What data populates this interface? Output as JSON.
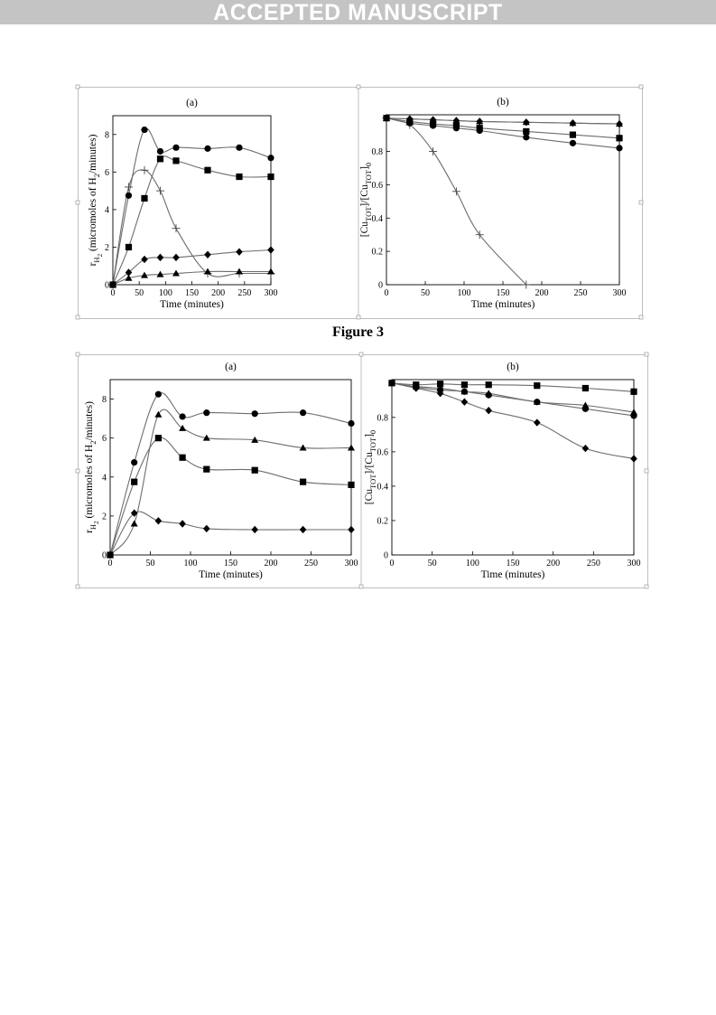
{
  "banner": {
    "text": "ACCEPTED MANUSCRIPT"
  },
  "figure_caption": "Figure 3",
  "chart_data": [
    {
      "type": "scatter",
      "panel_label": "(a)",
      "xlabel": "Time (minutes)",
      "ylabel": "r_H2 (micromoles of H2/minutes)",
      "xlim": [
        0,
        300
      ],
      "ylim": [
        0,
        9
      ],
      "x_ticks": [
        "0",
        "50",
        "100",
        "150",
        "200",
        "250",
        "300"
      ],
      "y_ticks": [
        "0",
        "2",
        "4",
        "6",
        "8"
      ],
      "grid": false,
      "series": [
        {
          "marker": "circle",
          "x": [
            0,
            30,
            60,
            90,
            120,
            180,
            240,
            300
          ],
          "y": [
            0,
            4.75,
            8.25,
            7.1,
            7.3,
            7.25,
            7.3,
            6.75
          ]
        },
        {
          "marker": "plus",
          "x": [
            0,
            30,
            60,
            90,
            120,
            180,
            240,
            300
          ],
          "y": [
            0,
            5.2,
            6.1,
            5.0,
            3.0,
            0.6,
            0.6,
            0.6
          ]
        },
        {
          "marker": "square",
          "x": [
            0,
            30,
            60,
            90,
            120,
            180,
            240,
            300
          ],
          "y": [
            0,
            2.0,
            4.6,
            6.7,
            6.6,
            6.1,
            5.75,
            5.75
          ]
        },
        {
          "marker": "diamond",
          "x": [
            0,
            30,
            60,
            90,
            120,
            180,
            240,
            300
          ],
          "y": [
            0,
            0.65,
            1.35,
            1.45,
            1.45,
            1.6,
            1.75,
            1.85
          ]
        },
        {
          "marker": "triangle",
          "x": [
            0,
            30,
            60,
            90,
            120,
            180,
            240,
            300
          ],
          "y": [
            0,
            0.35,
            0.5,
            0.55,
            0.6,
            0.7,
            0.7,
            0.7
          ]
        }
      ]
    },
    {
      "type": "scatter",
      "panel_label": "(b)",
      "xlabel": "Time (minutes)",
      "ylabel": "[Cu_TOT]/[Cu_TOT]_0",
      "xlim": [
        0,
        300
      ],
      "ylim": [
        0,
        1.02
      ],
      "x_ticks": [
        "0",
        "50",
        "100",
        "150",
        "200",
        "250",
        "300"
      ],
      "y_ticks": [
        "0",
        "0.2",
        "0.4",
        "0.6",
        "0.8"
      ],
      "grid": false,
      "series": [
        {
          "marker": "plus",
          "x": [
            0,
            30,
            60,
            90,
            120,
            180
          ],
          "y": [
            1.0,
            0.96,
            0.8,
            0.56,
            0.3,
            0.0
          ]
        },
        {
          "marker": "circle",
          "x": [
            0,
            30,
            60,
            90,
            120,
            180,
            240,
            300
          ],
          "y": [
            1.0,
            0.97,
            0.955,
            0.94,
            0.925,
            0.885,
            0.85,
            0.82
          ]
        },
        {
          "marker": "square",
          "x": [
            0,
            30,
            60,
            90,
            120,
            180,
            240,
            300
          ],
          "y": [
            1.0,
            0.98,
            0.965,
            0.955,
            0.94,
            0.92,
            0.9,
            0.88
          ]
        },
        {
          "marker": "triangle",
          "x": [
            0,
            30,
            60,
            90,
            120,
            180,
            240,
            300
          ],
          "y": [
            1.0,
            0.995,
            0.99,
            0.985,
            0.98,
            0.975,
            0.97,
            0.965
          ]
        },
        {
          "marker": "diamond",
          "x": [
            0,
            30,
            60,
            90,
            120,
            180,
            240,
            300
          ],
          "y": [
            1.0,
            0.995,
            0.99,
            0.985,
            0.98,
            0.975,
            0.97,
            0.965
          ]
        }
      ]
    },
    {
      "type": "scatter",
      "panel_label": "(a)",
      "xlabel": "Time (minutes)",
      "ylabel": "r_H2 (micromoles of H2/minutes)",
      "xlim": [
        0,
        300
      ],
      "ylim": [
        0,
        9
      ],
      "x_ticks": [
        "0",
        "50",
        "100",
        "150",
        "200",
        "250",
        "300"
      ],
      "y_ticks": [
        "0",
        "2",
        "4",
        "6",
        "8"
      ],
      "grid": false,
      "series": [
        {
          "marker": "circle",
          "x": [
            0,
            30,
            60,
            90,
            120,
            180,
            240,
            300
          ],
          "y": [
            0,
            4.75,
            8.25,
            7.1,
            7.3,
            7.25,
            7.3,
            6.75
          ]
        },
        {
          "marker": "triangle",
          "x": [
            0,
            30,
            60,
            90,
            120,
            180,
            240,
            300
          ],
          "y": [
            0,
            1.6,
            7.2,
            6.5,
            6.0,
            5.9,
            5.5,
            5.5
          ]
        },
        {
          "marker": "square",
          "x": [
            0,
            30,
            60,
            90,
            120,
            180,
            240,
            300
          ],
          "y": [
            0,
            3.75,
            6.0,
            5.0,
            4.4,
            4.35,
            3.75,
            3.6
          ]
        },
        {
          "marker": "diamond",
          "x": [
            0,
            30,
            60,
            90,
            120,
            180,
            240,
            300
          ],
          "y": [
            0,
            2.15,
            1.75,
            1.6,
            1.35,
            1.3,
            1.3,
            1.3
          ]
        }
      ]
    },
    {
      "type": "scatter",
      "panel_label": "(b)",
      "xlabel": "Time (minutes)",
      "ylabel": "[Cu_TOT]/[Cu_TOT]_0",
      "xlim": [
        0,
        300
      ],
      "ylim": [
        0,
        1.02
      ],
      "x_ticks": [
        "0",
        "50",
        "100",
        "150",
        "200",
        "250",
        "300"
      ],
      "y_ticks": [
        "0",
        "0.2",
        "0.4",
        "0.6",
        "0.8"
      ],
      "grid": false,
      "series": [
        {
          "marker": "square",
          "x": [
            0,
            30,
            60,
            90,
            120,
            180,
            240,
            300
          ],
          "y": [
            1.0,
            0.99,
            0.995,
            0.99,
            0.99,
            0.985,
            0.97,
            0.95
          ]
        },
        {
          "marker": "circle",
          "x": [
            0,
            30,
            60,
            90,
            120,
            180,
            240,
            300
          ],
          "y": [
            1.0,
            0.975,
            0.96,
            0.95,
            0.93,
            0.89,
            0.85,
            0.81
          ]
        },
        {
          "marker": "triangle",
          "x": [
            0,
            30,
            60,
            90,
            120,
            180,
            240,
            300
          ],
          "y": [
            1.0,
            0.98,
            0.97,
            0.95,
            0.94,
            0.89,
            0.87,
            0.83
          ]
        },
        {
          "marker": "diamond",
          "x": [
            0,
            30,
            60,
            90,
            120,
            180,
            240,
            300
          ],
          "y": [
            1.0,
            0.97,
            0.94,
            0.89,
            0.84,
            0.77,
            0.62,
            0.56
          ]
        }
      ]
    }
  ]
}
